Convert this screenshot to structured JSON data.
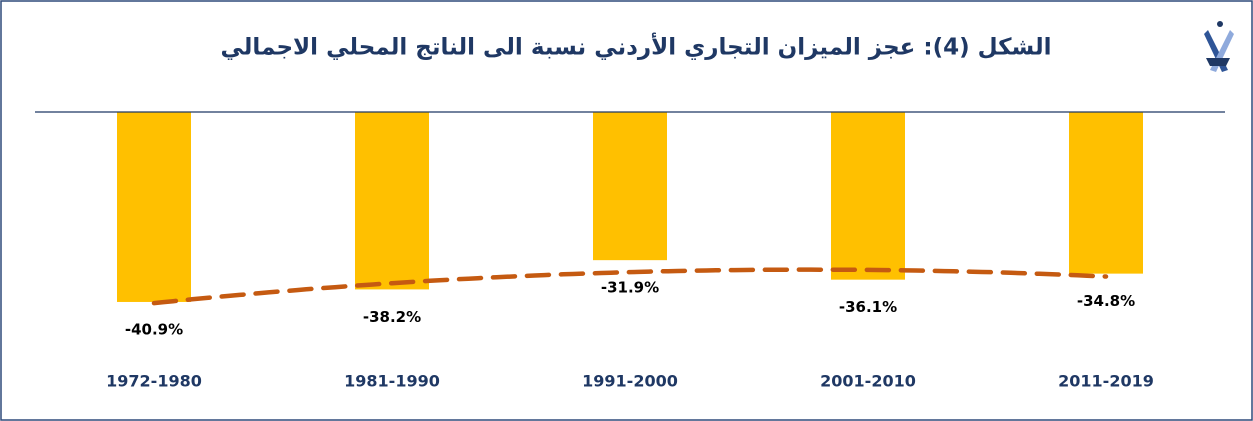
{
  "chart_data": {
    "type": "bar",
    "title": "الشكل (4): عجز الميزان التجاري الأردني نسبة الى الناتج المحلي الاجمالي",
    "categories": [
      "1972-1980",
      "1981-1990",
      "1991-2000",
      "2001-2010",
      "2011-2019"
    ],
    "values": [
      -40.9,
      -38.2,
      -31.9,
      -36.1,
      -34.8
    ],
    "value_labels": [
      "-40.9%",
      "-38.2%",
      "-31.9%",
      "-36.1%",
      "-34.8%"
    ],
    "color": "#ffc000",
    "ylim": [
      -45,
      0
    ],
    "trendline": {
      "color": "#c55a11",
      "dashed": true
    }
  }
}
